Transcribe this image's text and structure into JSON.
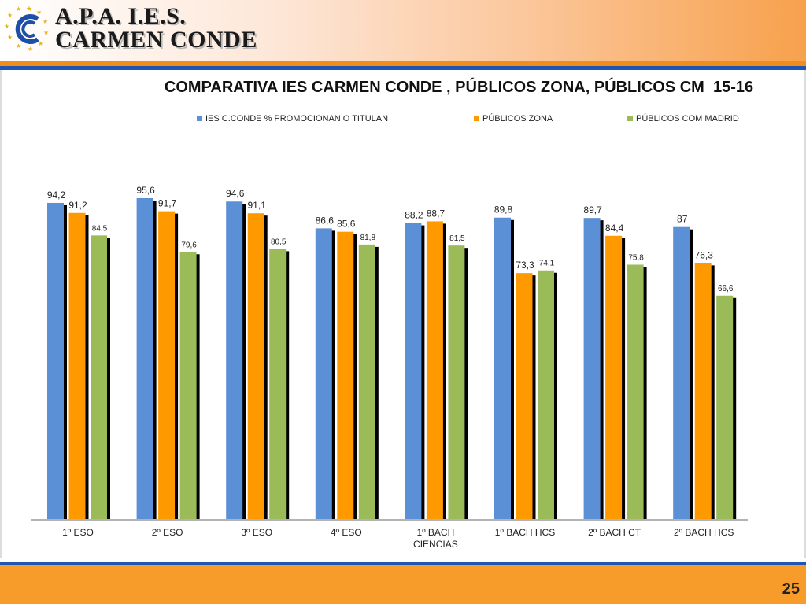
{
  "brand": {
    "line1": "A.P.A.  I.E.S.",
    "line2": "CARMEN CONDE",
    "colors": {
      "orange": "#f28c1a",
      "blue": "#1f56b4"
    }
  },
  "page_number": "25",
  "chart_data": {
    "type": "bar",
    "title": "COMPARATIVA IES CARMEN CONDE , PÚBLICOS ZONA, PÚBLICOS CM  15-16",
    "legend_position": "top",
    "categories": [
      "1º ESO",
      "2º ESO",
      "3º ESO",
      "4º ESO",
      "1º BACH CIENCIAS",
      "1º BACH HCS",
      "2º BACH CT",
      "2º BACH HCS"
    ],
    "ylim": [
      0,
      100
    ],
    "grid": false,
    "series": [
      {
        "name": "IES C.CONDE  % PROMOCIONAN O TITULAN",
        "color": "#5b8fd6",
        "values": [
          94.2,
          95.6,
          94.6,
          86.6,
          88.2,
          89.8,
          89.7,
          87
        ],
        "labels": [
          "94,2",
          "95,6",
          "94,6",
          "86,6",
          "88,2",
          "89,8",
          "89,7",
          "87"
        ]
      },
      {
        "name": "PÚBLICOS ZONA",
        "color": "#ff9900",
        "values": [
          91.2,
          91.7,
          91.1,
          85.6,
          88.7,
          73.3,
          84.4,
          76.3
        ],
        "labels": [
          "91,2",
          "91,7",
          "91,1",
          "85,6",
          "88,7",
          "73,3",
          "84,4",
          "76,3"
        ]
      },
      {
        "name": "PÚBLICOS COM MADRID",
        "color": "#9bbb59",
        "values": [
          84.5,
          79.6,
          80.5,
          81.8,
          81.5,
          74.1,
          75.8,
          66.6
        ],
        "labels": [
          "84,5",
          "79,6",
          "80,5",
          "81,8",
          "81,5",
          "74,1",
          "75,8",
          "66,6"
        ]
      }
    ]
  }
}
